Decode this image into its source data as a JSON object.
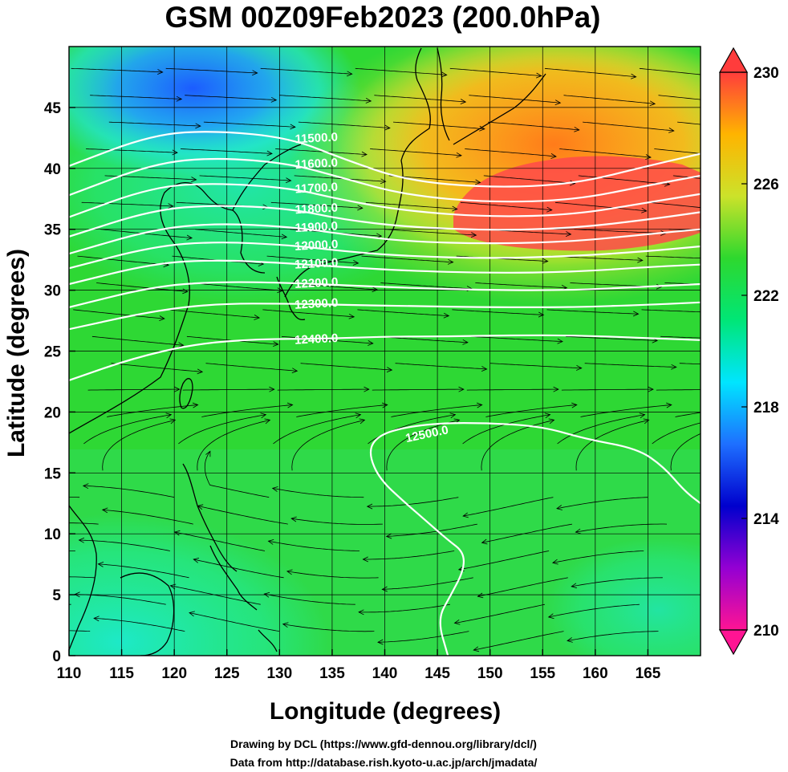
{
  "title": "GSM 00Z09Feb2023 (200.0hPa)",
  "axes": {
    "xlabel": "Longitude (degrees)",
    "ylabel": "Latitude  (degrees)",
    "xlim": [
      110,
      170
    ],
    "ylim": [
      0,
      50
    ],
    "xticks": [
      "110",
      "115",
      "120",
      "125",
      "130",
      "135",
      "140",
      "145",
      "150",
      "155",
      "160",
      "165"
    ],
    "yticks": [
      "0",
      "5",
      "10",
      "15",
      "20",
      "25",
      "30",
      "35",
      "40",
      "45"
    ]
  },
  "colorbar": {
    "min": 210,
    "max": 230,
    "ticks": [
      "230",
      "226",
      "222",
      "218",
      "214",
      "210"
    ],
    "stops": [
      "#ff1493",
      "#9400d3",
      "#0000cd",
      "#1e6fff",
      "#00e5ff",
      "#00e676",
      "#2ed82e",
      "#cce22a",
      "#ffb400",
      "#ff3c3c"
    ]
  },
  "contours": {
    "color": "#ffffff",
    "levels": [
      {
        "label": "11500.0",
        "pts": [
          [
            110,
            40.2
          ],
          [
            118,
            42.8
          ],
          [
            124,
            43.1
          ],
          [
            131,
            42.5
          ],
          [
            136,
            40.8
          ],
          [
            142,
            39.0
          ],
          [
            150,
            38.4
          ],
          [
            158,
            38.7
          ],
          [
            165,
            40.2
          ],
          [
            170,
            41.2
          ]
        ]
      },
      {
        "label": "11600.0",
        "pts": [
          [
            110,
            37.8
          ],
          [
            118,
            40.4
          ],
          [
            124,
            40.9
          ],
          [
            131,
            40.4
          ],
          [
            136,
            39.2
          ],
          [
            142,
            37.8
          ],
          [
            150,
            37.2
          ],
          [
            158,
            37.4
          ],
          [
            165,
            38.6
          ],
          [
            170,
            39.4
          ]
        ]
      },
      {
        "label": "11700.0",
        "pts": [
          [
            110,
            36.0
          ],
          [
            118,
            38.5
          ],
          [
            124,
            38.8
          ],
          [
            131,
            38.4
          ],
          [
            136,
            37.4
          ],
          [
            142,
            36.5
          ],
          [
            150,
            36.0
          ],
          [
            158,
            36.2
          ],
          [
            165,
            37.2
          ],
          [
            170,
            37.9
          ]
        ]
      },
      {
        "label": "11800.0",
        "pts": [
          [
            110,
            34.4
          ],
          [
            118,
            36.6
          ],
          [
            124,
            37.0
          ],
          [
            131,
            36.7
          ],
          [
            136,
            35.8
          ],
          [
            142,
            35.2
          ],
          [
            150,
            34.9
          ],
          [
            158,
            35.1
          ],
          [
            165,
            35.8
          ],
          [
            170,
            36.4
          ]
        ]
      },
      {
        "label": "11900.0",
        "pts": [
          [
            110,
            33.0
          ],
          [
            118,
            35.0
          ],
          [
            124,
            35.5
          ],
          [
            131,
            35.2
          ],
          [
            136,
            34.6
          ],
          [
            142,
            34.0
          ],
          [
            150,
            33.8
          ],
          [
            158,
            34.0
          ],
          [
            165,
            34.6
          ],
          [
            170,
            35.0
          ]
        ]
      },
      {
        "label": "12000.0",
        "pts": [
          [
            110,
            31.8
          ],
          [
            118,
            33.6
          ],
          [
            124,
            34.0
          ],
          [
            131,
            33.7
          ],
          [
            136,
            33.2
          ],
          [
            142,
            32.8
          ],
          [
            150,
            32.6
          ],
          [
            158,
            32.8
          ],
          [
            165,
            33.2
          ],
          [
            170,
            33.6
          ]
        ]
      },
      {
        "label": "12100.0",
        "pts": [
          [
            110,
            30.5
          ],
          [
            118,
            32.2
          ],
          [
            124,
            32.5
          ],
          [
            131,
            32.2
          ],
          [
            136,
            31.9
          ],
          [
            142,
            31.6
          ],
          [
            150,
            31.4
          ],
          [
            158,
            31.5
          ],
          [
            165,
            31.9
          ],
          [
            170,
            32.1
          ]
        ]
      },
      {
        "label": "12200.0",
        "pts": [
          [
            110,
            28.6
          ],
          [
            118,
            30.3
          ],
          [
            124,
            30.7
          ],
          [
            131,
            30.6
          ],
          [
            136,
            30.4
          ],
          [
            142,
            30.2
          ],
          [
            150,
            30.0
          ],
          [
            158,
            30.0
          ],
          [
            165,
            30.3
          ],
          [
            170,
            30.5
          ]
        ]
      },
      {
        "label": "12300.0",
        "pts": [
          [
            110,
            26.8
          ],
          [
            118,
            28.3
          ],
          [
            124,
            28.9
          ],
          [
            131,
            28.9
          ],
          [
            136,
            28.8
          ],
          [
            142,
            28.7
          ],
          [
            150,
            28.6
          ],
          [
            158,
            28.6
          ],
          [
            165,
            28.8
          ],
          [
            170,
            29.0
          ]
        ]
      },
      {
        "label": "12400.0",
        "pts": [
          [
            110,
            22.6
          ],
          [
            116,
            24.4
          ],
          [
            122,
            25.6
          ],
          [
            128,
            26.0
          ],
          [
            134,
            26.0
          ],
          [
            140,
            26.2
          ],
          [
            146,
            26.2
          ],
          [
            152,
            26.3
          ],
          [
            158,
            26.3
          ],
          [
            164,
            26.1
          ],
          [
            170,
            25.9
          ]
        ]
      },
      {
        "label": "12500.0",
        "pts": [
          [
            146,
            0
          ],
          [
            145,
            3
          ],
          [
            146.3,
            5
          ],
          [
            147.5,
            7
          ],
          [
            147.5,
            8.5
          ],
          [
            146,
            9.5
          ],
          [
            144,
            11
          ],
          [
            142,
            12.5
          ],
          [
            139.5,
            14.5
          ],
          [
            138.5,
            16.5
          ],
          [
            139,
            17.8
          ],
          [
            141,
            18.6
          ],
          [
            145,
            19.1
          ],
          [
            150,
            19.1
          ],
          [
            155,
            18.8
          ],
          [
            159,
            17.8
          ],
          [
            164,
            17.0
          ],
          [
            166.5,
            15.5
          ],
          [
            168.5,
            13.5
          ],
          [
            170,
            12.5
          ]
        ]
      }
    ]
  }
}
